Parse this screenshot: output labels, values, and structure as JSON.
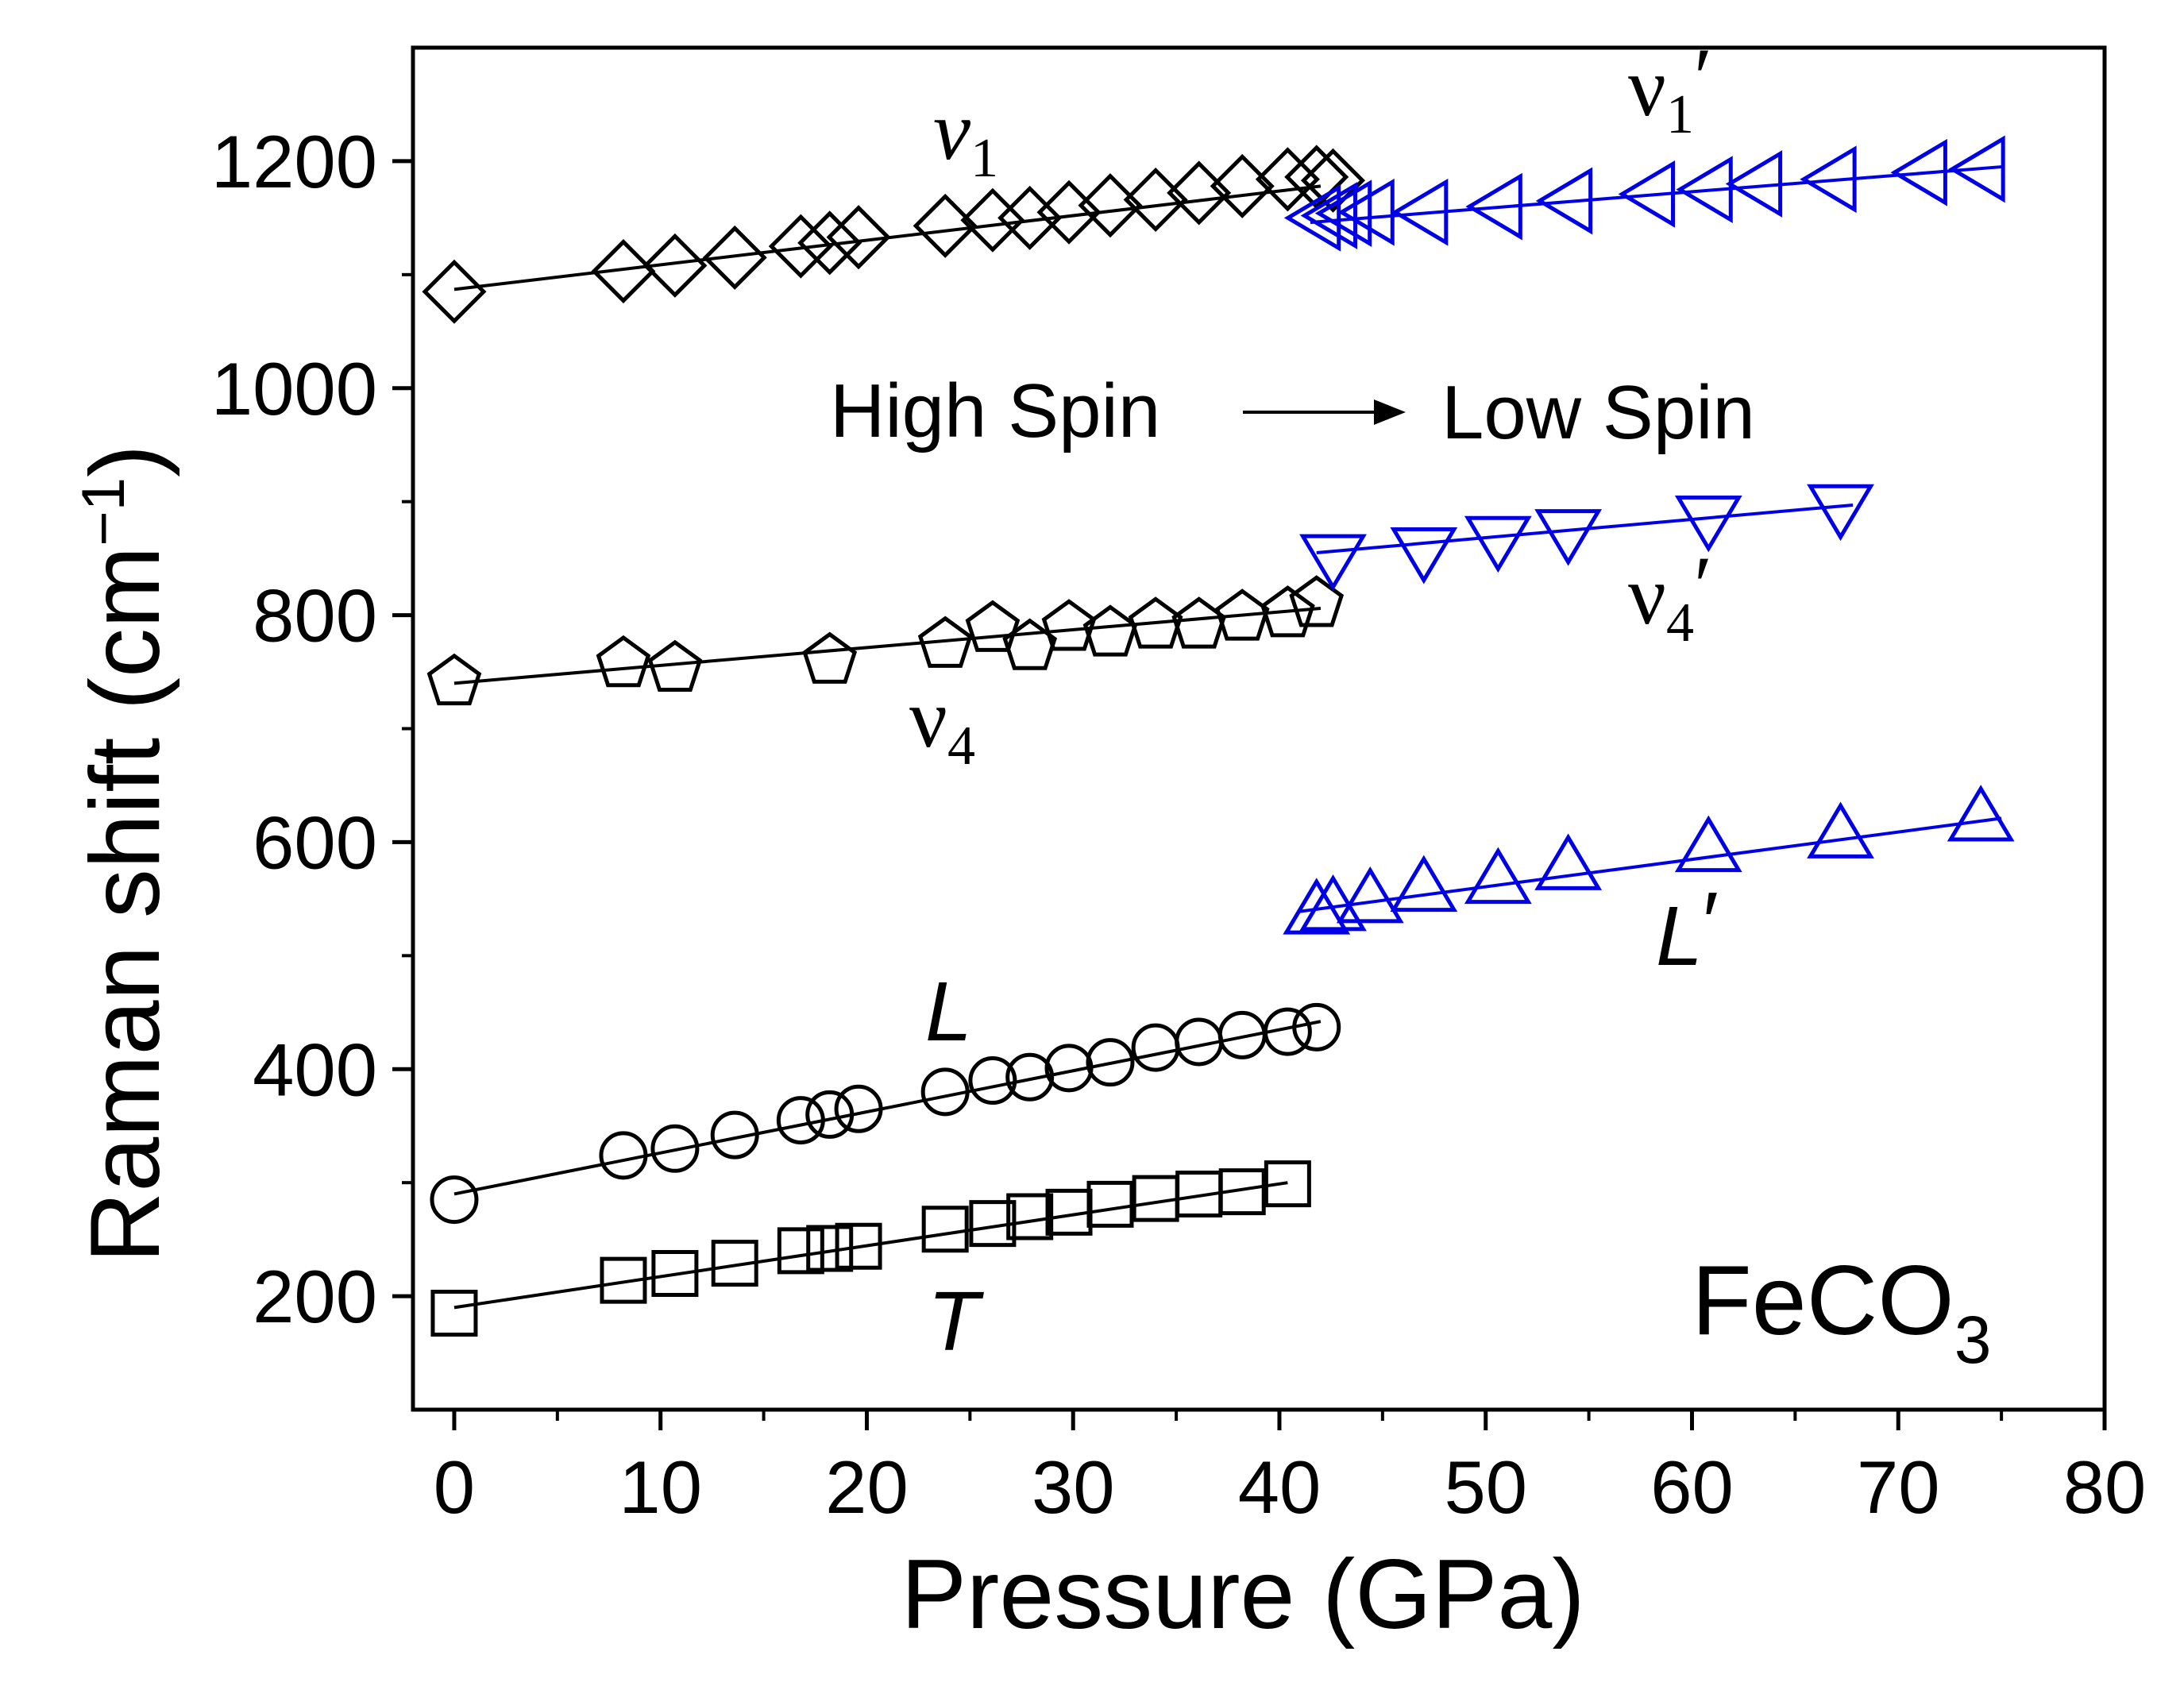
{
  "chart_data": {
    "type": "scatter",
    "title": "",
    "xlabel": "Pressure (GPa)",
    "ylabel_main": "Raman shift (cm",
    "ylabel_sup": "−1",
    "ylabel_close": ")",
    "xlim": [
      -2,
      80
    ],
    "ylim": [
      100,
      1300
    ],
    "xticks": [
      0,
      10,
      20,
      30,
      40,
      50,
      60,
      70,
      80
    ],
    "yticks": [
      200,
      400,
      600,
      800,
      1000,
      1200
    ],
    "grid": false,
    "colors": {
      "high_spin": "#000000",
      "low_spin": "#0000e6"
    },
    "series": [
      {
        "name": "ν1",
        "label_base": "ν",
        "label_sub": "1",
        "label_prime": "",
        "spin": "high",
        "marker": "diamond",
        "fit": [
          [
            0,
            1087
          ],
          [
            42,
            1178
          ]
        ],
        "x": [
          0,
          8.2,
          10.7,
          13.6,
          16.8,
          18.2,
          19.6,
          23.8,
          26.1,
          27.9,
          29.8,
          31.8,
          34.0,
          36.1,
          38.2,
          40.4,
          41.8,
          42.6
        ],
        "y": [
          1085,
          1103,
          1108,
          1115,
          1125,
          1128,
          1133,
          1143,
          1148,
          1150,
          1155,
          1161,
          1166,
          1172,
          1178,
          1184,
          1186,
          1183
        ]
      },
      {
        "name": "ν1′",
        "label_base": "ν",
        "label_sub": "1",
        "label_prime": "′",
        "spin": "low",
        "marker": "triangle-left",
        "fit": [
          [
            41.5,
            1146
          ],
          [
            75,
            1195
          ]
        ],
        "x": [
          41.8,
          42.6,
          43.3,
          44.4,
          47.0,
          50.6,
          54.0,
          58.0,
          60.8,
          63.2,
          66.8,
          71.2,
          74.0
        ],
        "y": [
          1150,
          1152,
          1154,
          1155,
          1155,
          1160,
          1165,
          1171,
          1175,
          1180,
          1184,
          1190,
          1193
        ]
      },
      {
        "name": "ν4",
        "label_base": "ν",
        "label_sub": "4",
        "label_prime": "",
        "spin": "high",
        "marker": "pentagon",
        "fit": [
          [
            0,
            740
          ],
          [
            42,
            806
          ]
        ],
        "x": [
          0,
          8.2,
          10.7,
          18.2,
          23.8,
          26.1,
          27.9,
          29.8,
          31.8,
          34.0,
          36.1,
          38.2,
          40.4,
          41.8
        ],
        "y": [
          741,
          757,
          753,
          760,
          774,
          788,
          772,
          789,
          784,
          791,
          791,
          798,
          801,
          810
        ]
      },
      {
        "name": "ν4′",
        "label_base": "ν",
        "label_sub": "4",
        "label_prime": "′",
        "spin": "low",
        "marker": "triangle-down",
        "fit": [
          [
            41.8,
            855
          ],
          [
            67.8,
            897
          ]
        ],
        "x": [
          42.6,
          47.0,
          50.6,
          54.0,
          60.8,
          67.2
        ],
        "y": [
          850,
          856,
          866,
          872,
          884,
          894
        ]
      },
      {
        "name": "L",
        "label_base": "L",
        "label_sub": "",
        "label_prime": "",
        "spin": "high",
        "marker": "circle",
        "fit": [
          [
            0,
            290
          ],
          [
            42,
            442
          ]
        ],
        "x": [
          0,
          8.2,
          10.7,
          13.6,
          16.8,
          18.2,
          19.6,
          23.8,
          26.1,
          27.9,
          29.8,
          31.8,
          34.0,
          36.1,
          38.2,
          40.4,
          41.8
        ],
        "y": [
          285,
          324,
          330,
          342,
          355,
          360,
          365,
          380,
          390,
          393,
          401,
          406,
          419,
          424,
          430,
          433,
          437
        ]
      },
      {
        "name": "L′",
        "label_base": "L",
        "label_sub": "",
        "label_prime": "′",
        "spin": "low",
        "marker": "triangle-up",
        "fit": [
          [
            41,
            539
          ],
          [
            75,
            621
          ]
        ],
        "x": [
          41.8,
          42.6,
          44.4,
          47.0,
          50.6,
          54.0,
          60.8,
          67.2,
          74.0
        ],
        "y": [
          540,
          543,
          550,
          560,
          567,
          579,
          595,
          607,
          622
        ]
      },
      {
        "name": "T",
        "label_base": "T",
        "label_sub": "",
        "label_prime": "",
        "spin": "high",
        "marker": "square",
        "fit": [
          [
            0,
            190
          ],
          [
            40.4,
            300
          ]
        ],
        "x": [
          0,
          8.2,
          10.7,
          13.6,
          16.8,
          18.2,
          19.6,
          23.8,
          26.1,
          27.9,
          29.8,
          31.8,
          34.0,
          36.1,
          38.2,
          40.4
        ],
        "y": [
          185,
          214,
          220,
          229,
          240,
          242,
          244,
          259,
          264,
          270,
          274,
          281,
          286,
          290,
          292,
          299
        ]
      }
    ],
    "annotations": {
      "high_spin": "High Spin",
      "low_spin": "Low Spin",
      "compound_base": "FeCO",
      "compound_sub": "3"
    }
  }
}
